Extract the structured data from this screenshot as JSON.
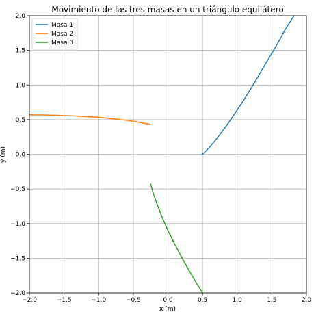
{
  "chart_data": {
    "type": "line",
    "title": "Movimiento de las tres masas en un triángulo equilátero",
    "xlabel": "x (m)",
    "ylabel": "y (m)",
    "xlim": [
      -2.0,
      2.0
    ],
    "ylim": [
      -2.0,
      2.0
    ],
    "xticks": [
      "−2.0",
      "−1.5",
      "−1.0",
      "−0.5",
      "0.0",
      "0.5",
      "1.0",
      "1.5",
      "2.0"
    ],
    "xtick_values": [
      -2.0,
      -1.5,
      -1.0,
      -0.5,
      0.0,
      0.5,
      1.0,
      1.5,
      2.0
    ],
    "yticks": [
      "−2.0",
      "−1.5",
      "−1.0",
      "−0.5",
      "0.0",
      "0.5",
      "1.0",
      "1.5",
      "2.0"
    ],
    "ytick_values": [
      -2.0,
      -1.5,
      -1.0,
      -0.5,
      0.0,
      0.5,
      1.0,
      1.5,
      2.0
    ],
    "grid": true,
    "legend_position": "top-left",
    "series": [
      {
        "name": "Masa 1",
        "color": "#1f77b4",
        "x": [
          0.5,
          0.6,
          0.7,
          0.8,
          0.9,
          1.0,
          1.1,
          1.2,
          1.3,
          1.4,
          1.5,
          1.6,
          1.7,
          1.82
        ],
        "y": [
          0.0,
          0.1,
          0.22,
          0.35,
          0.49,
          0.64,
          0.79,
          0.95,
          1.12,
          1.29,
          1.46,
          1.63,
          1.81,
          2.0
        ]
      },
      {
        "name": "Masa 2",
        "color": "#ff7f0e",
        "x": [
          -2.0,
          -1.8,
          -1.6,
          -1.4,
          -1.2,
          -1.0,
          -0.8,
          -0.6,
          -0.45,
          -0.25
        ],
        "y": [
          0.57,
          0.568,
          0.563,
          0.556,
          0.546,
          0.533,
          0.514,
          0.49,
          0.468,
          0.43
        ]
      },
      {
        "name": "Masa 3",
        "color": "#2ca02c",
        "x": [
          -0.25,
          -0.2,
          -0.1,
          0.0,
          0.1,
          0.2,
          0.3,
          0.4,
          0.5
        ],
        "y": [
          -0.43,
          -0.6,
          -0.87,
          -1.1,
          -1.3,
          -1.49,
          -1.67,
          -1.84,
          -2.0
        ]
      }
    ]
  }
}
